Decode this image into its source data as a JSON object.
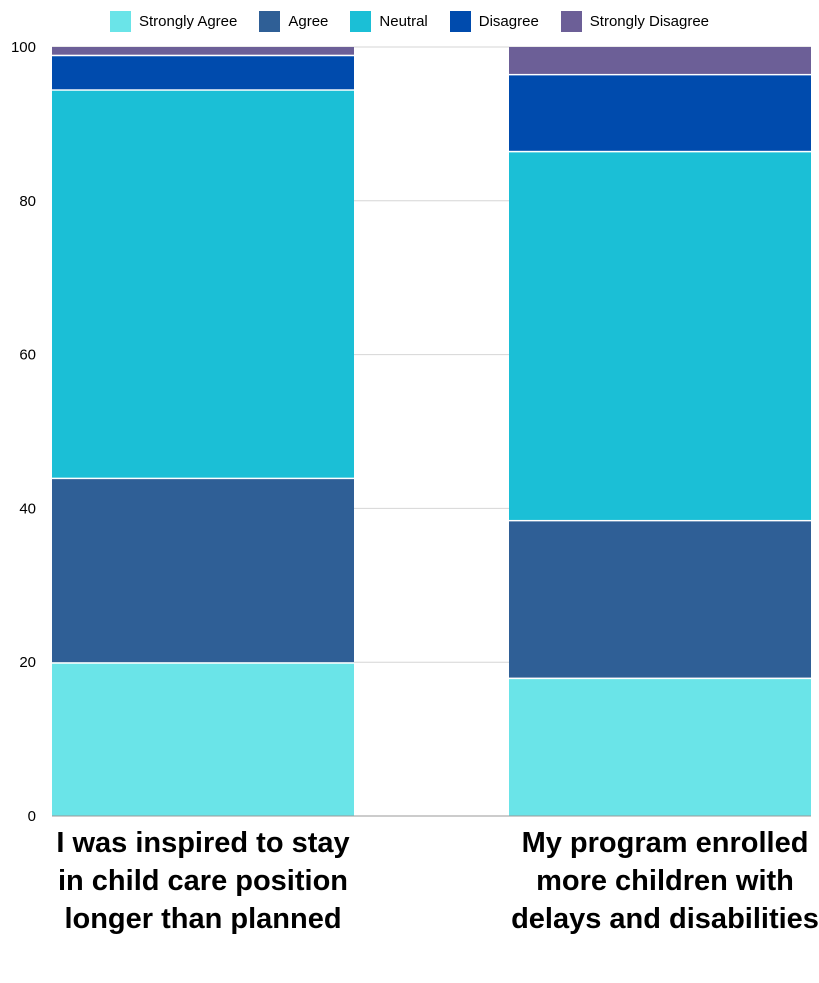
{
  "chart_data": {
    "type": "bar",
    "stacked": true,
    "categories": [
      "I was inspired to stay in child care position longer than planned",
      "My program enrolled more children with delays and disabilities"
    ],
    "series": [
      {
        "name": "Strongly Agree",
        "color": "#6ae4e8",
        "values": [
          20,
          18
        ]
      },
      {
        "name": "Agree",
        "color": "#2f5f96",
        "values": [
          24,
          20.5
        ]
      },
      {
        "name": "Neutral",
        "color": "#1bbfd6",
        "values": [
          50.5,
          48
        ]
      },
      {
        "name": "Disagree",
        "color": "#004bad",
        "values": [
          4.5,
          10
        ]
      },
      {
        "name": "Strongly Disagree",
        "color": "#6c5f97",
        "values": [
          1,
          3.5
        ]
      }
    ],
    "ylim": [
      0,
      100
    ],
    "yticks": [
      "0",
      "20",
      "40",
      "60",
      "80",
      "100"
    ],
    "grid": true,
    "legend_position": "top"
  }
}
